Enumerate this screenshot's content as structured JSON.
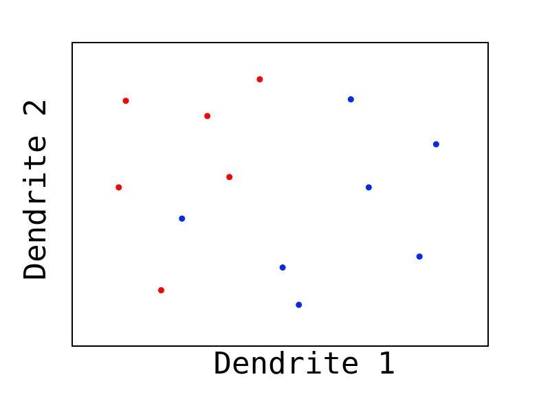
{
  "chart_data": {
    "type": "scatter",
    "title": "",
    "xlabel": "Dendrite 1",
    "ylabel": "Dendrite 2",
    "xlim": [
      0,
      100
    ],
    "ylim": [
      0,
      100
    ],
    "grid": false,
    "legend": "none",
    "series": [
      {
        "color": "#ff0000",
        "points": [
          {
            "x": 12.9,
            "y": 80.8
          },
          {
            "x": 32.5,
            "y": 75.8
          },
          {
            "x": 45.1,
            "y": 87.9
          },
          {
            "x": 11.2,
            "y": 52.3
          },
          {
            "x": 37.8,
            "y": 55.7
          },
          {
            "x": 21.4,
            "y": 18.4
          }
        ]
      },
      {
        "color": "#0028ff",
        "points": [
          {
            "x": 67.0,
            "y": 81.3
          },
          {
            "x": 87.5,
            "y": 66.5
          },
          {
            "x": 71.3,
            "y": 52.3
          },
          {
            "x": 26.4,
            "y": 42.0
          },
          {
            "x": 50.6,
            "y": 25.9
          },
          {
            "x": 54.5,
            "y": 13.6
          },
          {
            "x": 83.5,
            "y": 29.5
          }
        ]
      }
    ]
  }
}
